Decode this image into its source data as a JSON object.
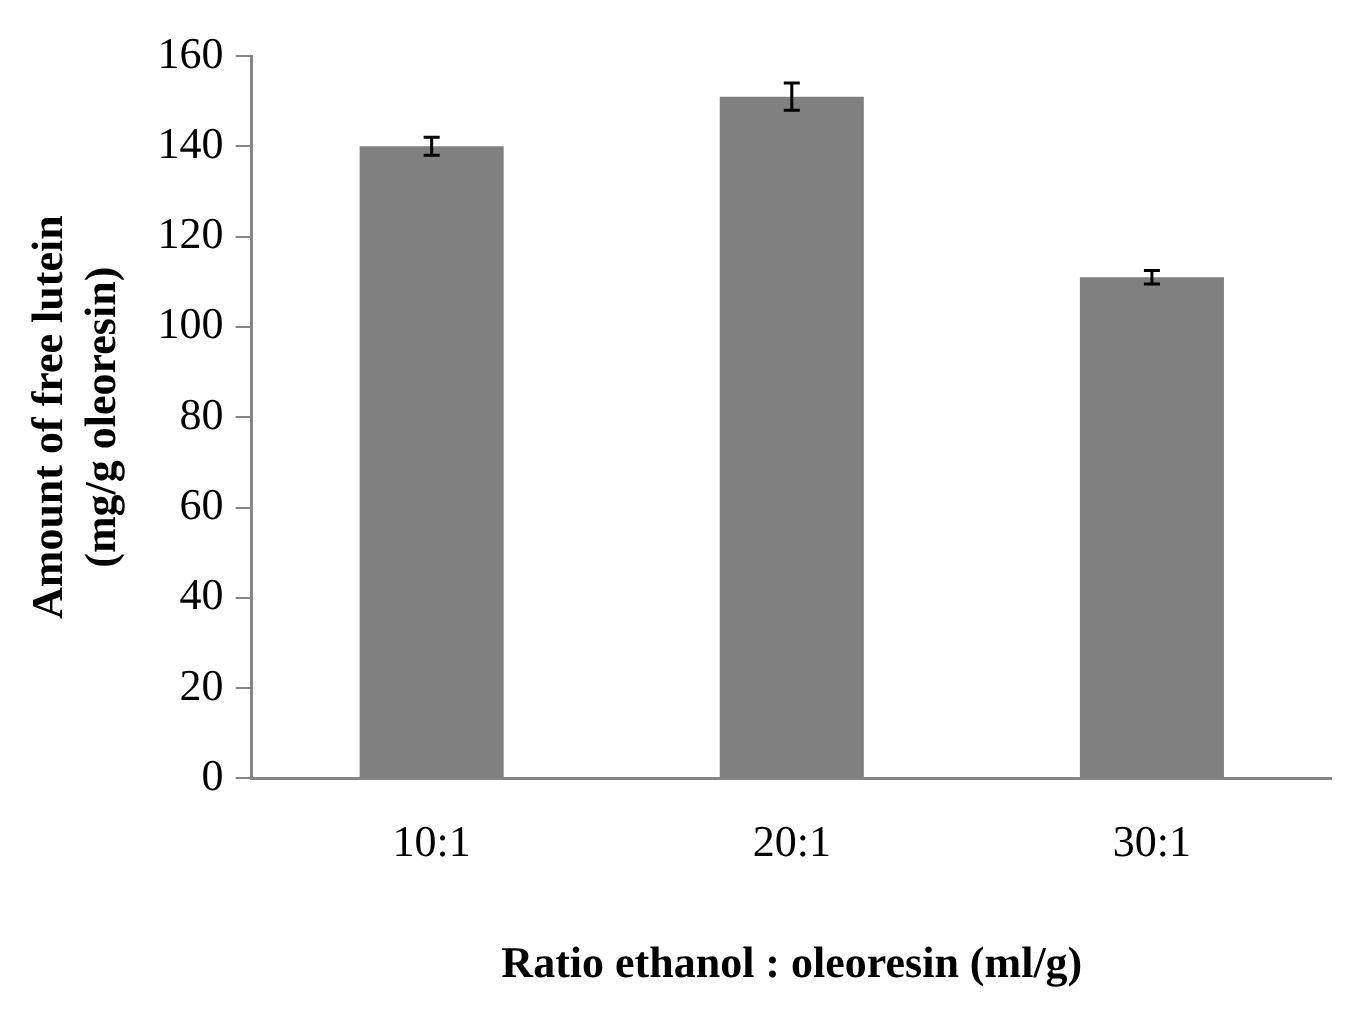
{
  "chart_data": {
    "type": "bar",
    "xlabel": "Ratio ethanol : oleoresin (ml/g)",
    "ylabel": "Amount of free lutein\n(mg/g oleoresin)",
    "categories": [
      "10:1",
      "20:1",
      "30:1"
    ],
    "values": [
      140,
      151,
      111
    ],
    "errors": [
      2,
      3,
      1.5
    ],
    "color": "#808080",
    "ylim": [
      0,
      160
    ],
    "yticks": [
      0,
      20,
      40,
      60,
      80,
      100,
      120,
      140,
      160
    ],
    "grid": false,
    "legend": false
  }
}
